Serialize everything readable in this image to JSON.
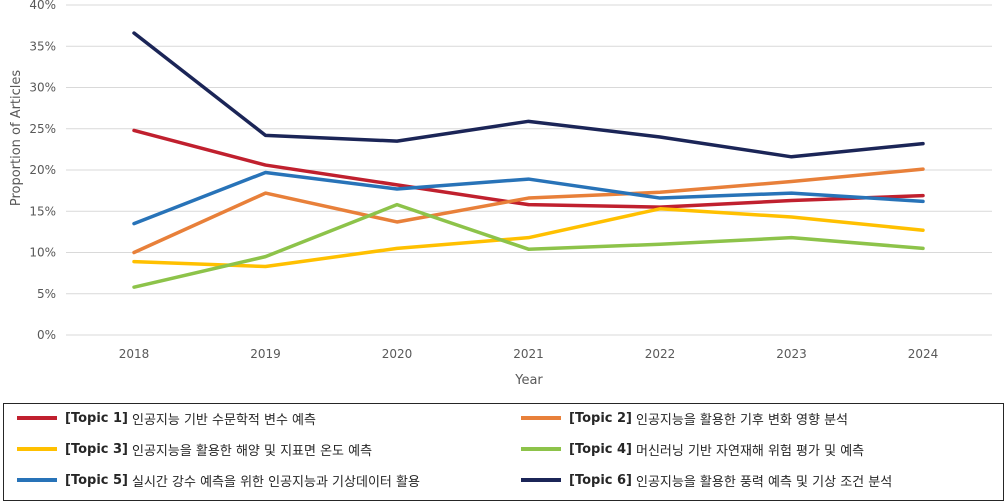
{
  "chart_data": {
    "type": "line",
    "x": [
      "2018",
      "2019",
      "2020",
      "2021",
      "2022",
      "2023",
      "2024"
    ],
    "xlabel": "Year",
    "ylabel": "Proportion of Articles",
    "ylim": [
      0,
      40
    ],
    "y_ticks": [
      "0%",
      "5%",
      "10%",
      "15%",
      "20%",
      "25%",
      "30%",
      "35%",
      "40%"
    ],
    "grid": true,
    "legend_position": "bottom",
    "series": [
      {
        "tag": "[Topic 1]",
        "name": "인공지능 기반 수문학적 변수 예측",
        "color": "#c0202e",
        "values": [
          24.8,
          20.6,
          18.2,
          15.8,
          15.5,
          16.3,
          16.9
        ]
      },
      {
        "tag": "[Topic 2]",
        "name": "인공지능을 활용한 기후 변화 영향 분석",
        "color": "#e8803a",
        "values": [
          10.0,
          17.2,
          13.7,
          16.6,
          17.3,
          18.6,
          20.1
        ]
      },
      {
        "tag": "[Topic 3]",
        "name": "인공지능을 활용한 해양 및 지표면 온도 예측",
        "color": "#ffc000",
        "values": [
          8.9,
          8.3,
          10.5,
          11.8,
          15.3,
          14.3,
          12.7
        ]
      },
      {
        "tag": "[Topic 4]",
        "name": "머신러닝 기반 자연재해 위험 평가 및 예측",
        "color": "#8dc34a",
        "values": [
          5.8,
          9.5,
          15.8,
          10.4,
          11.0,
          11.8,
          10.5
        ]
      },
      {
        "tag": "[Topic 5]",
        "name": "실시간 강수 예측을 위한 인공지능과 기상데이터 활용",
        "color": "#2873b8",
        "values": [
          13.5,
          19.7,
          17.7,
          18.9,
          16.6,
          17.2,
          16.2
        ]
      },
      {
        "tag": "[Topic 6]",
        "name": "인공지능을 활용한 풍력 예측 및 기상 조건 분석",
        "color": "#1b2557",
        "values": [
          36.6,
          24.2,
          23.5,
          25.9,
          24.0,
          21.6,
          23.2
        ]
      }
    ]
  }
}
